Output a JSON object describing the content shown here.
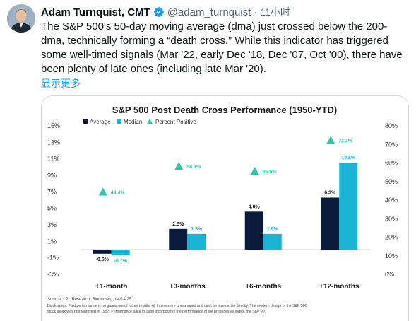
{
  "tweet": {
    "display_name": "Adam Turnquist, CMT",
    "handle": "@adam_turnquist",
    "separator": "·",
    "time": "11小时",
    "text": "The S&P 500's 50-day moving average (dma) just crossed below the 200-dma, technically forming a “death cross.” While this indicator has triggered some well-timed signals (Mar '22, early Dec '18, Dec '07, Oct '00), there have been plenty of late ones (including late Mar '20).",
    "show_more": "显示更多",
    "verified_icon": "verified-badge-icon"
  },
  "colors": {
    "average": "#0b1b3b",
    "median": "#19b4d6",
    "percent_positive": "#2ec4a5",
    "text_dark": "#0f1419",
    "link": "#1d9bf0"
  },
  "chart_data": {
    "type": "bar",
    "title": "S&P 500 Post Death Cross Performance (1950-YTD)",
    "categories": [
      "+1-month",
      "+3-months",
      "+6-months",
      "+12-months"
    ],
    "series": [
      {
        "name": "Average",
        "values": [
          -0.5,
          2.5,
          4.6,
          6.3
        ],
        "labels": [
          "-0.5%",
          "2.5%",
          "4.6%",
          "6.3%"
        ]
      },
      {
        "name": "Median",
        "values": [
          -0.7,
          1.9,
          1.9,
          10.5
        ],
        "labels": [
          "-0.7%",
          "1.9%",
          "1.9%",
          "10.5%"
        ]
      },
      {
        "name": "Percent Positive",
        "axis": "right",
        "marker": "triangle",
        "values": [
          44.4,
          58.3,
          55.6,
          72.2
        ],
        "labels": [
          "44.4%",
          "58.3%",
          "55.6%",
          "72.2%"
        ]
      }
    ],
    "left_axis": {
      "range": [
        -3,
        15
      ],
      "ticks": [
        "15%",
        "13%",
        "11%",
        "9%",
        "7%",
        "5%",
        "3%",
        "1%",
        "-1%",
        "-3%"
      ],
      "tick_values": [
        15,
        13,
        11,
        9,
        7,
        5,
        3,
        1,
        -1,
        -3
      ]
    },
    "right_axis": {
      "range": [
        0,
        80
      ],
      "ticks": [
        "80%",
        "70%",
        "60%",
        "50%",
        "40%",
        "30%",
        "20%",
        "10%",
        "0%"
      ],
      "tick_values": [
        80,
        70,
        60,
        50,
        40,
        30,
        20,
        10,
        0
      ]
    },
    "legend_position": "top-left",
    "source": "Source: LPL Research, Bloomberg, 04/14/25",
    "disclosures": [
      "Disclosures: Past performance is no guarantee of future results. All indexes are unmanaged and can't be invested in directly. The modern design of the S&P 500",
      "stock index was first launched in 1957. Performance back to 1950 incorporates the performance of the predecessor index, the S&P 90."
    ]
  }
}
